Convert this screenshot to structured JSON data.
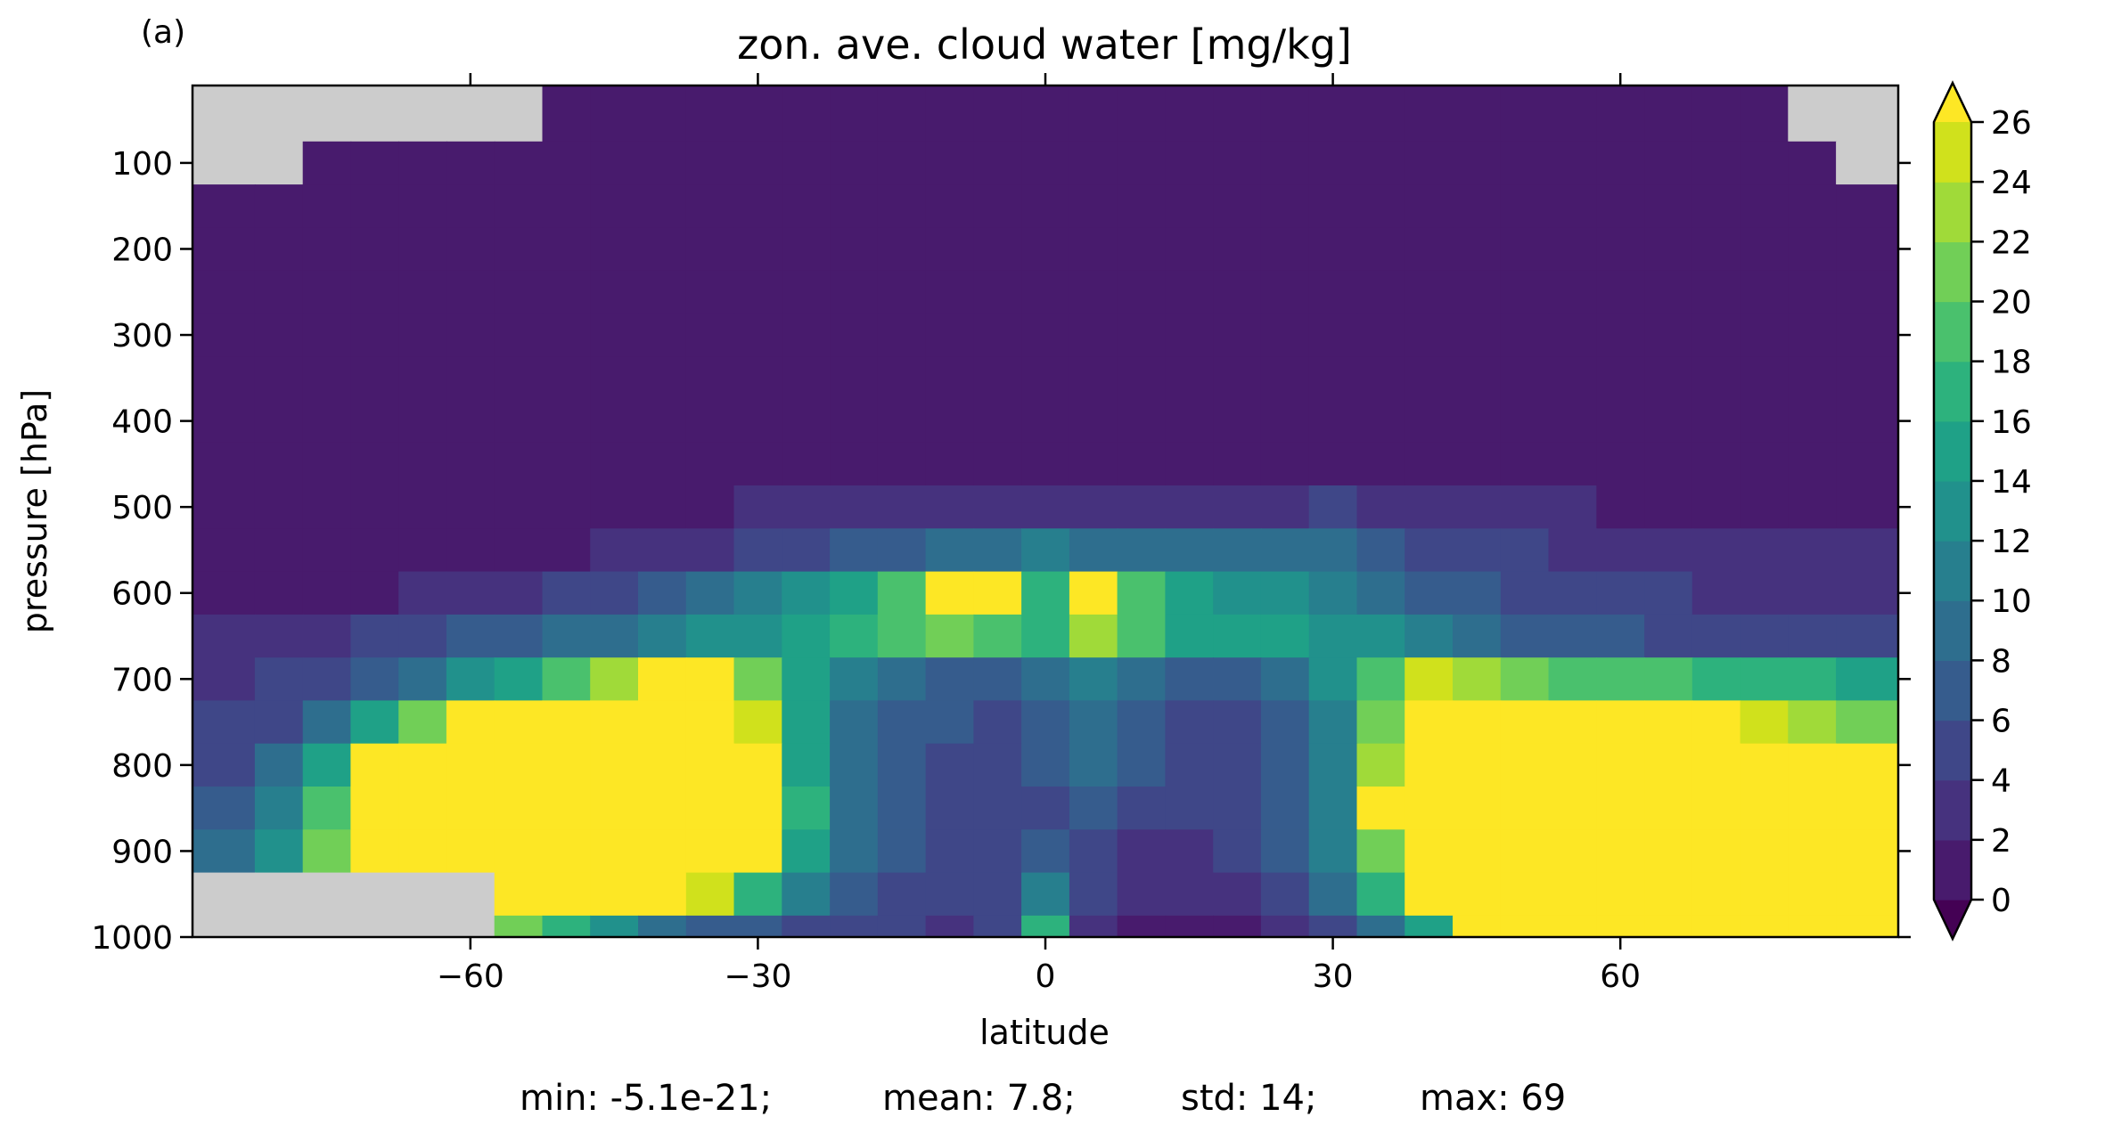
{
  "panel_label": "(a)",
  "stats": {
    "min": "min: -5.1e-21;",
    "mean": "mean: 7.8;",
    "std": "std: 14;",
    "max": "max: 69"
  },
  "colors": {
    "missing": "#cccccc",
    "under": "#440154",
    "over": "#fde725",
    "levels": [
      "#481b6d",
      "#46327e",
      "#3f4788",
      "#365c8d",
      "#2e6e8e",
      "#277f8e",
      "#21918c",
      "#1fa187",
      "#2db27d",
      "#4ac16d",
      "#71cf57",
      "#a0da39",
      "#d0e11c"
    ]
  },
  "chart_data": {
    "type": "heatmap",
    "title": "zon. ave. cloud water [mg/kg]",
    "xlabel": "latitude",
    "ylabel": "pressure [hPa]",
    "xlim": [
      -89,
      89
    ],
    "ylim": [
      1000,
      10
    ],
    "x_ticks": [
      -60,
      -30,
      0,
      30,
      60
    ],
    "x_tick_labels": [
      "−60",
      "−30",
      "0",
      "30",
      "60"
    ],
    "y_ticks": [
      100,
      200,
      300,
      400,
      500,
      600,
      700,
      800,
      900,
      1000
    ],
    "y_tick_labels": [
      "100",
      "200",
      "300",
      "400",
      "500",
      "600",
      "700",
      "800",
      "900",
      "1000"
    ],
    "colorbar": {
      "levels": [
        0,
        2,
        4,
        6,
        8,
        10,
        12,
        14,
        16,
        18,
        20,
        22,
        24,
        26
      ],
      "tick_labels": [
        "0",
        "2",
        "4",
        "6",
        "8",
        "10",
        "12",
        "14",
        "16",
        "18",
        "20",
        "22",
        "24",
        "26"
      ],
      "extend": "both"
    },
    "grid": false,
    "z_approx": {
      "lat": [
        -85,
        -80,
        -75,
        -70,
        -65,
        -60,
        -55,
        -50,
        -45,
        -40,
        -35,
        -30,
        -25,
        -20,
        -15,
        -10,
        -5,
        0,
        5,
        10,
        15,
        20,
        25,
        30,
        35,
        40,
        45,
        50,
        55,
        60,
        65,
        70,
        75,
        80,
        85
      ],
      "pressure": [
        50,
        100,
        150,
        200,
        250,
        300,
        350,
        400,
        450,
        500,
        550,
        600,
        650,
        700,
        750,
        800,
        850,
        900,
        950,
        1000
      ],
      "rows": [
        [
          null,
          null,
          null,
          null,
          null,
          null,
          null,
          0,
          1,
          0,
          1,
          0,
          1,
          0,
          0,
          1,
          0,
          1,
          0,
          1,
          0,
          1,
          0,
          0,
          1,
          0,
          1,
          0,
          1,
          0,
          0,
          1,
          0,
          null,
          null
        ],
        [
          null,
          null,
          1,
          0,
          1,
          0,
          1,
          0,
          0,
          1,
          0,
          0,
          1,
          0,
          0,
          0,
          1,
          0,
          0,
          0,
          1,
          0,
          0,
          1,
          0,
          0,
          1,
          0,
          0,
          1,
          0,
          1,
          0,
          1,
          null
        ],
        [
          1,
          1,
          0,
          1,
          0,
          1,
          0,
          1,
          0,
          0,
          0,
          0,
          1,
          0,
          0,
          0,
          0,
          0,
          0,
          0,
          0,
          0,
          0,
          0,
          1,
          0,
          0,
          0,
          0,
          1,
          0,
          1,
          1,
          0,
          1
        ],
        [
          1,
          0,
          1,
          1,
          0,
          1,
          1,
          1,
          1,
          1,
          1,
          1,
          1,
          1,
          1,
          1,
          1,
          1,
          1,
          1,
          1,
          1,
          1,
          1,
          1,
          1,
          1,
          1,
          1,
          1,
          1,
          1,
          0,
          1,
          1
        ],
        [
          1,
          1,
          1,
          1,
          1,
          1,
          1,
          1,
          1,
          1,
          1,
          1,
          1,
          1,
          1,
          1,
          1,
          1,
          1,
          1,
          1,
          1,
          1,
          1,
          1,
          1,
          1,
          1,
          1,
          1,
          1,
          1,
          1,
          1,
          0
        ],
        [
          0,
          1,
          1,
          1,
          1,
          1,
          1,
          1,
          1,
          1,
          1,
          1,
          1,
          1,
          1,
          1,
          1,
          1,
          1,
          1,
          1,
          1,
          1,
          1,
          1,
          1,
          1,
          1,
          1,
          1,
          1,
          1,
          1,
          1,
          1
        ],
        [
          1,
          1,
          1,
          1,
          1,
          1,
          1,
          1,
          1,
          1,
          1,
          1,
          1,
          1,
          1,
          1,
          1,
          1,
          1,
          1,
          1,
          1,
          1,
          1,
          1,
          1,
          1,
          1,
          1,
          1,
          1,
          1,
          1,
          1,
          1
        ],
        [
          1,
          1,
          1,
          1,
          1,
          1,
          1,
          1,
          1,
          1,
          1,
          1,
          1,
          1,
          1,
          1,
          1,
          1,
          1,
          1,
          1,
          1,
          1,
          1,
          1,
          1,
          1,
          1,
          1,
          1,
          1,
          1,
          1,
          1,
          1
        ],
        [
          1,
          1,
          1,
          1,
          1,
          1,
          1,
          1,
          1,
          1,
          1,
          1,
          1,
          1,
          1,
          1,
          1,
          1,
          1,
          1,
          1,
          1,
          1,
          1,
          1,
          1,
          1,
          1,
          1,
          1,
          1,
          1,
          1,
          1,
          1
        ],
        [
          1,
          1,
          1,
          1,
          1,
          1,
          1,
          1,
          1,
          1,
          1,
          2,
          2,
          2,
          2,
          3,
          3,
          3,
          3,
          3,
          3,
          3,
          3,
          4,
          3,
          2,
          2,
          2,
          2,
          1,
          1,
          1,
          1,
          1,
          1
        ],
        [
          1,
          1,
          1,
          1,
          1,
          1,
          1,
          1,
          2,
          3,
          3,
          4,
          5,
          6,
          7,
          8,
          9,
          10,
          9,
          8,
          8,
          8,
          9,
          8,
          6,
          5,
          4,
          4,
          3,
          3,
          2,
          2,
          2,
          2,
          2
        ],
        [
          1,
          1,
          1,
          1,
          2,
          2,
          3,
          4,
          5,
          7,
          8,
          10,
          12,
          14,
          18,
          26,
          26,
          16,
          28,
          18,
          14,
          13,
          12,
          11,
          9,
          7,
          6,
          5,
          4,
          4,
          4,
          3,
          3,
          3,
          3
        ],
        [
          2,
          3,
          3,
          4,
          5,
          6,
          7,
          8,
          9,
          11,
          12,
          13,
          15,
          17,
          19,
          21,
          19,
          16,
          22,
          18,
          15,
          14,
          14,
          13,
          12,
          10,
          8,
          7,
          6,
          6,
          5,
          5,
          5,
          5,
          5
        ],
        [
          3,
          4,
          5,
          7,
          9,
          12,
          15,
          18,
          22,
          27,
          28,
          20,
          14,
          10,
          8,
          7,
          6,
          8,
          10,
          8,
          6,
          6,
          8,
          12,
          18,
          24,
          22,
          20,
          19,
          18,
          18,
          17,
          16,
          16,
          15
        ],
        [
          4,
          5,
          8,
          14,
          20,
          26,
          28,
          30,
          30,
          30,
          30,
          24,
          14,
          9,
          7,
          6,
          5,
          7,
          9,
          7,
          5,
          5,
          7,
          11,
          20,
          30,
          30,
          28,
          28,
          27,
          27,
          26,
          25,
          22,
          20
        ],
        [
          5,
          8,
          14,
          26,
          30,
          30,
          30,
          30,
          30,
          30,
          30,
          27,
          15,
          9,
          6,
          5,
          5,
          6,
          8,
          6,
          5,
          5,
          6,
          10,
          22,
          30,
          30,
          30,
          30,
          30,
          30,
          30,
          30,
          30,
          30
        ],
        [
          6,
          10,
          18,
          30,
          30,
          30,
          30,
          30,
          30,
          30,
          30,
          30,
          16,
          9,
          6,
          5,
          4,
          5,
          7,
          5,
          4,
          5,
          7,
          11,
          27,
          30,
          30,
          30,
          30,
          30,
          30,
          30,
          30,
          30,
          30
        ],
        [
          8,
          12,
          20,
          30,
          30,
          30,
          30,
          30,
          30,
          30,
          30,
          26,
          14,
          8,
          6,
          5,
          4,
          6,
          5,
          3,
          3,
          4,
          6,
          10,
          20,
          30,
          30,
          30,
          30,
          30,
          30,
          30,
          30,
          30,
          30
        ],
        [
          null,
          null,
          null,
          null,
          null,
          null,
          30,
          30,
          30,
          30,
          24,
          16,
          10,
          7,
          5,
          4,
          4,
          10,
          4,
          2,
          2,
          3,
          5,
          8,
          16,
          28,
          30,
          30,
          30,
          30,
          30,
          30,
          30,
          30,
          30
        ],
        [
          null,
          null,
          null,
          null,
          null,
          null,
          20,
          16,
          12,
          9,
          7,
          6,
          5,
          4,
          4,
          3,
          4,
          16,
          3,
          1,
          1,
          1,
          2,
          4,
          8,
          14,
          28,
          30,
          30,
          30,
          30,
          30,
          30,
          30,
          30
        ]
      ]
    }
  }
}
